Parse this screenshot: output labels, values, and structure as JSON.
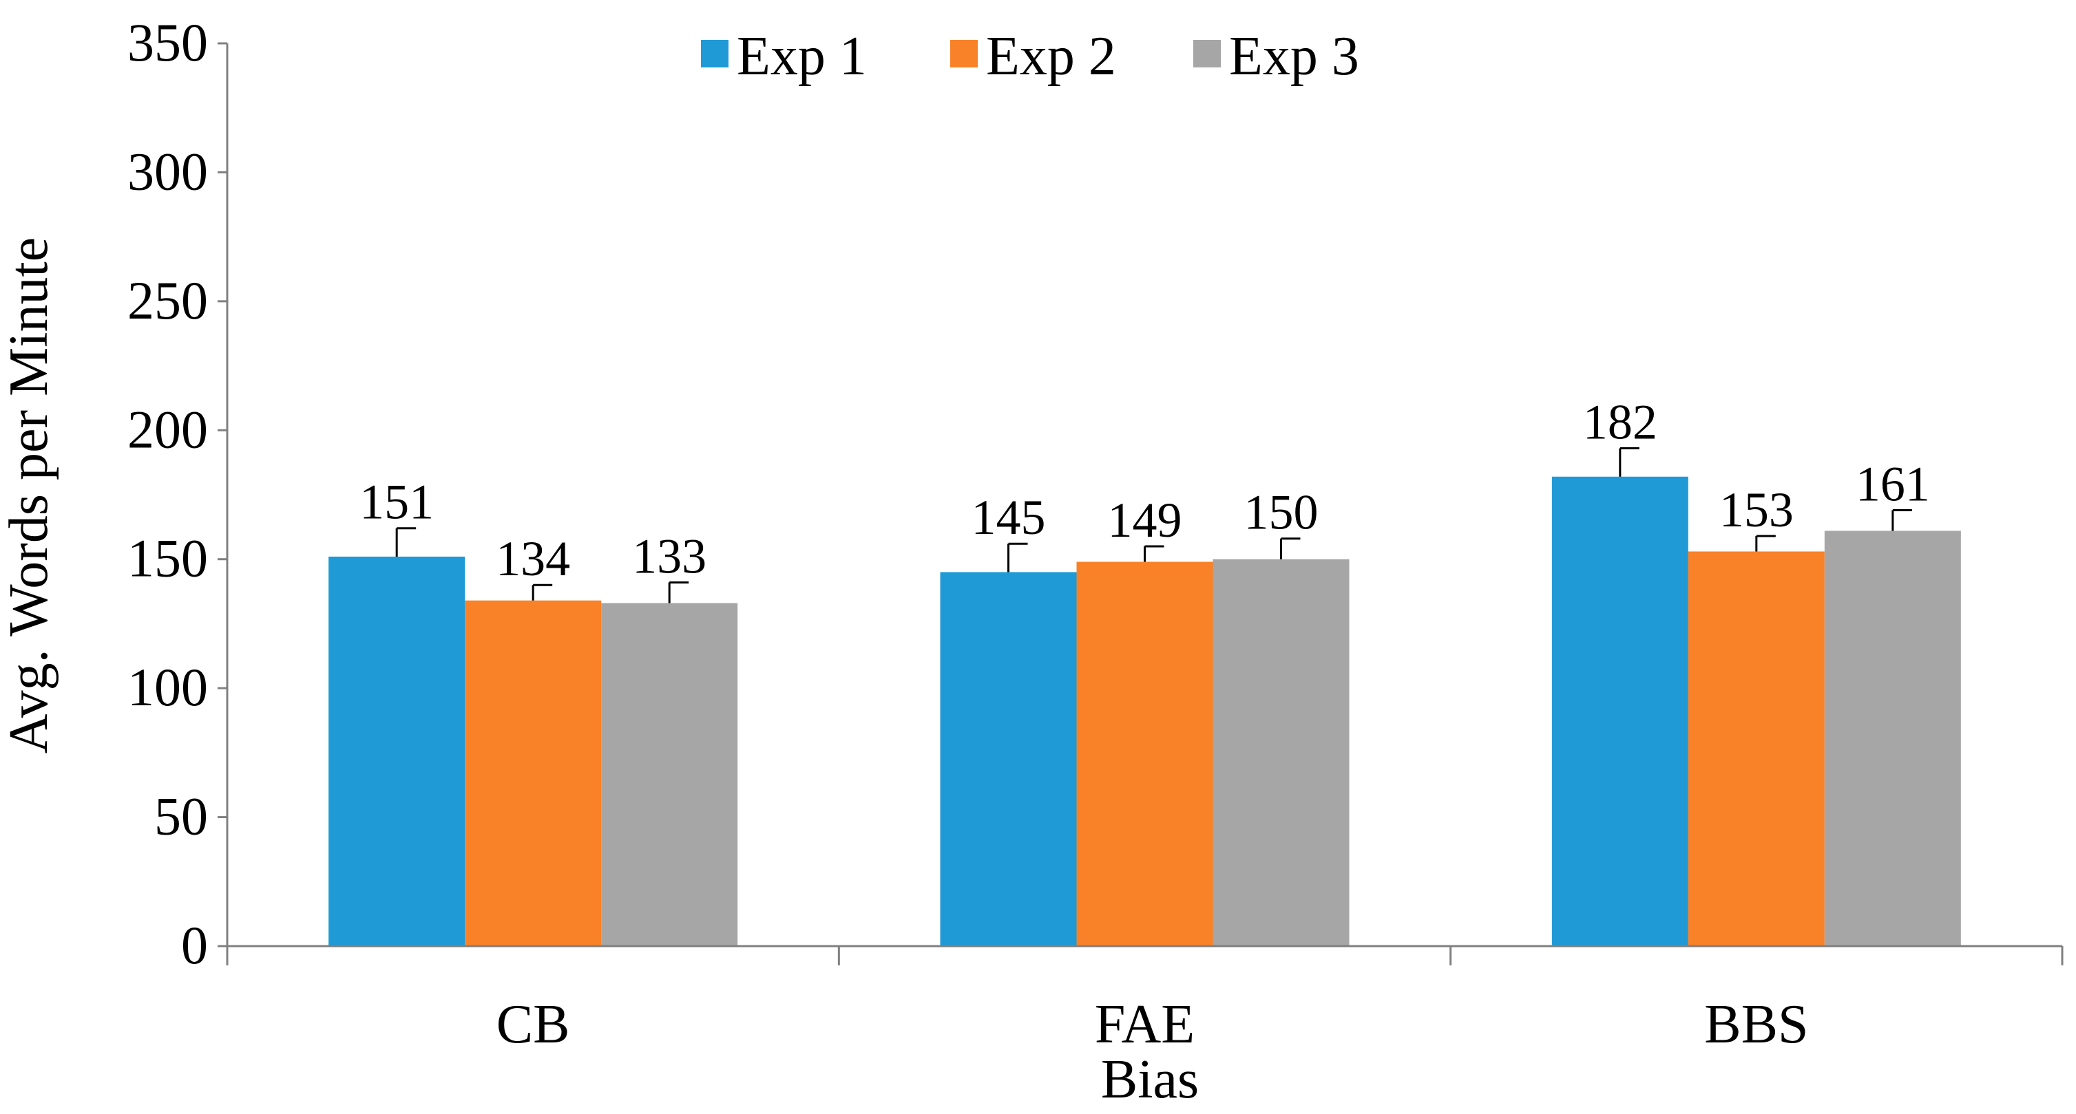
{
  "chart_data": {
    "type": "bar",
    "title": "",
    "xlabel": "Bias",
    "ylabel": "Avg. Words per Minute",
    "categories": [
      "CB",
      "FAE",
      "BBS"
    ],
    "ylim": [
      0,
      350
    ],
    "yticks": [
      0,
      50,
      100,
      150,
      200,
      250,
      300,
      350
    ],
    "grid": false,
    "legend_position": "top-center",
    "series": [
      {
        "name": "Exp 1",
        "color": "#1f9ad6",
        "values": [
          151,
          145,
          182
        ],
        "error": [
          11,
          11,
          11
        ],
        "labels": [
          "151",
          "145",
          "182"
        ]
      },
      {
        "name": "Exp 2",
        "color": "#f98127",
        "values": [
          134,
          149,
          153
        ],
        "error": [
          6,
          6,
          6
        ],
        "labels": [
          "134",
          "149",
          "153"
        ]
      },
      {
        "name": "Exp 3",
        "color": "#a6a6a6",
        "values": [
          133,
          150,
          161
        ],
        "error": [
          8,
          8,
          8
        ],
        "labels": [
          "133",
          "150",
          "161"
        ]
      }
    ]
  }
}
